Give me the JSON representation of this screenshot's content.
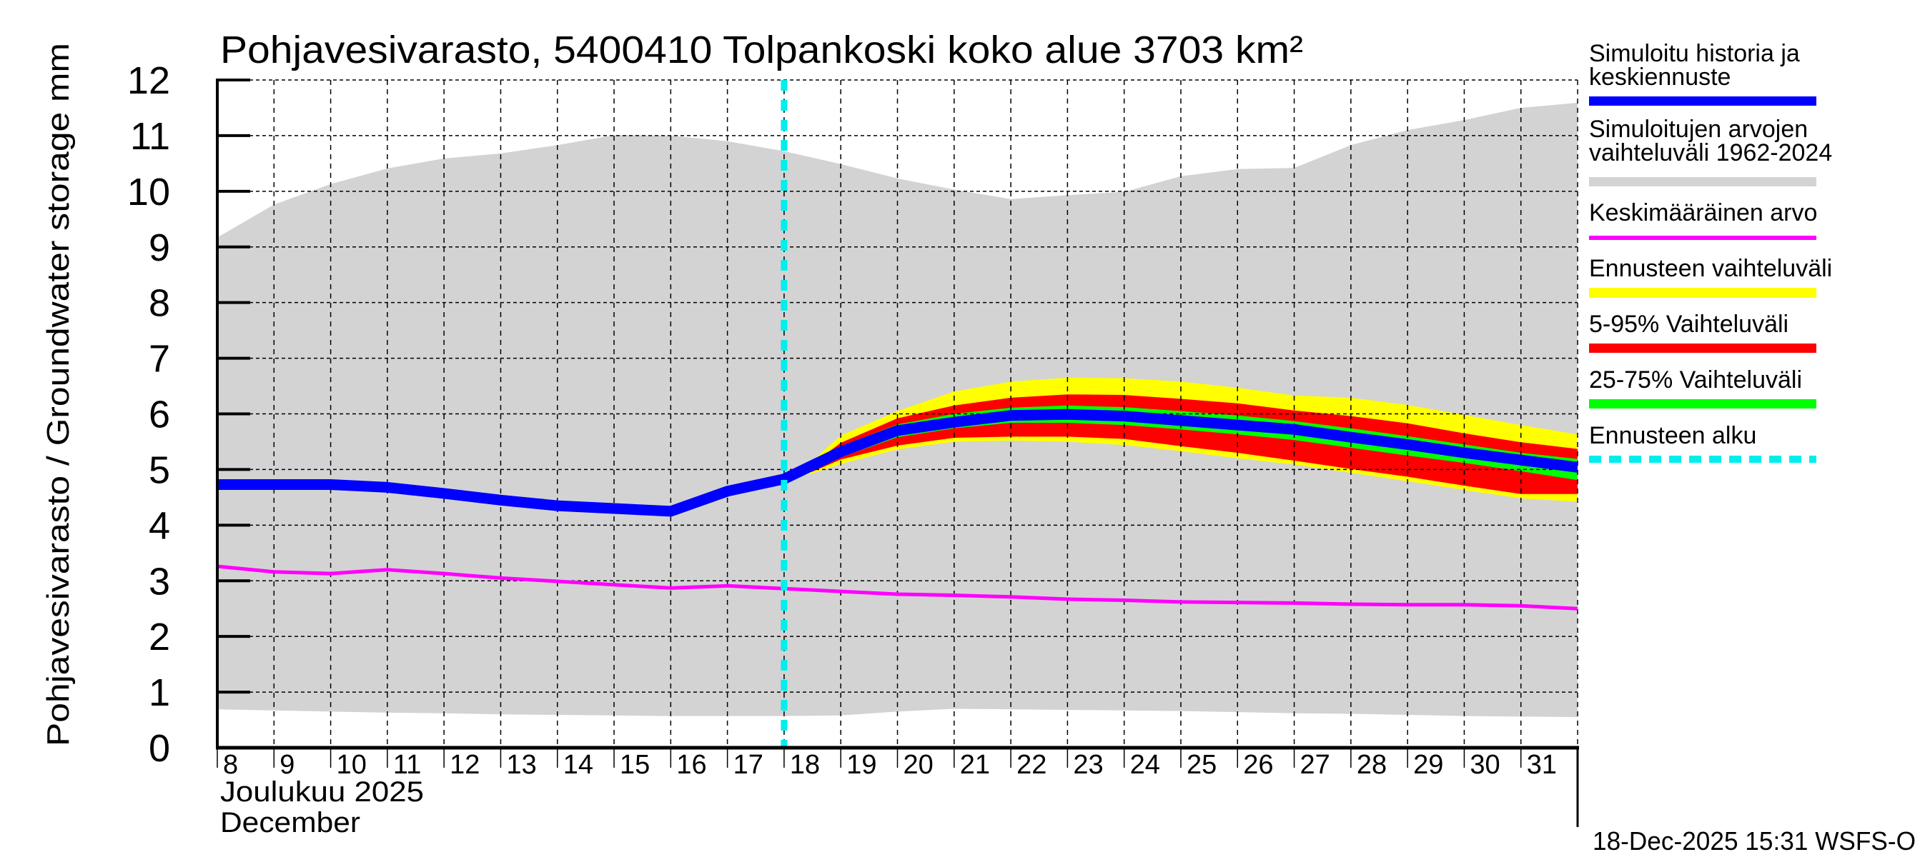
{
  "chart_data": {
    "type": "area",
    "title": "Pohjavesivarasto, 5400410 Tolpankoski koko alue 3703 km²",
    "ylabel": "Pohjavesivarasto / Groundwater storage   mm",
    "xlabel_line1": "Joulukuu  2025",
    "xlabel_line2": "December",
    "timestamp": "18-Dec-2025 15:31 WSFS-O",
    "ylim": [
      0,
      12
    ],
    "xlim": [
      8,
      32
    ],
    "yticks": [
      "0",
      "1",
      "2",
      "3",
      "4",
      "5",
      "6",
      "7",
      "8",
      "9",
      "10",
      "11",
      "12"
    ],
    "xticks": [
      "8",
      "9",
      "10",
      "11",
      "12",
      "13",
      "14",
      "15",
      "16",
      "17",
      "18",
      "19",
      "20",
      "21",
      "22",
      "23",
      "24",
      "25",
      "26",
      "27",
      "28",
      "29",
      "30",
      "31"
    ],
    "forecast_start_day": 18,
    "grid": true,
    "legend_position": "right",
    "colors": {
      "blue": "#0000ff",
      "gray": "#d3d3d3",
      "magenta": "#ff00ff",
      "yellow": "#ffff00",
      "red": "#ff0000",
      "green": "#00ff00",
      "cyan": "#00eeee"
    },
    "series": [
      {
        "name": "Simuloitujen arvojen vaihteluväli 1962-2024",
        "kind": "band",
        "color": "#d3d3d3",
        "x": [
          8,
          9,
          10,
          11,
          12,
          13,
          14,
          15,
          16,
          17,
          18,
          19,
          20,
          21,
          22,
          23,
          24,
          25,
          26,
          27,
          28,
          29,
          30,
          31,
          32
        ],
        "upper": [
          9.17,
          9.76,
          10.13,
          10.41,
          10.59,
          10.68,
          10.83,
          11.01,
          11.0,
          10.9,
          10.72,
          10.49,
          10.23,
          10.03,
          9.86,
          9.93,
          9.99,
          10.27,
          10.4,
          10.42,
          10.83,
          11.1,
          11.28,
          11.5,
          11.59
        ],
        "lower": [
          0.69,
          0.67,
          0.65,
          0.63,
          0.62,
          0.6,
          0.59,
          0.58,
          0.57,
          0.57,
          0.57,
          0.58,
          0.65,
          0.7,
          0.69,
          0.68,
          0.67,
          0.66,
          0.64,
          0.62,
          0.61,
          0.59,
          0.57,
          0.56,
          0.55
        ]
      },
      {
        "name": "Ennusteen vaihteluväli",
        "kind": "band",
        "color": "#ffff00",
        "x": [
          18,
          18.5,
          19,
          20,
          21,
          22,
          23,
          24,
          25,
          26,
          27,
          28,
          29,
          30,
          31,
          32
        ],
        "upper": [
          4.84,
          5.16,
          5.61,
          6.05,
          6.4,
          6.58,
          6.65,
          6.64,
          6.58,
          6.47,
          6.33,
          6.29,
          6.16,
          5.98,
          5.8,
          5.63
        ],
        "lower": [
          4.84,
          4.93,
          5.1,
          5.36,
          5.5,
          5.52,
          5.5,
          5.44,
          5.33,
          5.2,
          5.09,
          4.94,
          4.79,
          4.63,
          4.48,
          4.42
        ]
      },
      {
        "name": "5-95% Vaihteluväli",
        "kind": "band",
        "color": "#ff0000",
        "x": [
          18,
          18.5,
          19,
          20,
          21,
          22,
          23,
          24,
          25,
          26,
          27,
          28,
          29,
          30,
          31,
          32
        ],
        "upper": [
          4.84,
          5.1,
          5.48,
          5.92,
          6.15,
          6.29,
          6.35,
          6.34,
          6.27,
          6.19,
          6.06,
          5.96,
          5.83,
          5.65,
          5.49,
          5.37
        ],
        "lower": [
          4.84,
          4.96,
          5.18,
          5.43,
          5.57,
          5.59,
          5.59,
          5.55,
          5.42,
          5.3,
          5.16,
          5.01,
          4.87,
          4.71,
          4.56,
          4.56
        ]
      },
      {
        "name": "25-75% Vaihteluväli",
        "kind": "band",
        "color": "#00ff00",
        "x": [
          18,
          18.5,
          19,
          20,
          21,
          22,
          23,
          24,
          25,
          26,
          27,
          28,
          29,
          30,
          31,
          32
        ],
        "upper": [
          4.84,
          5.05,
          5.42,
          5.81,
          6.0,
          6.11,
          6.15,
          6.12,
          6.05,
          5.97,
          5.87,
          5.74,
          5.6,
          5.45,
          5.3,
          5.19
        ],
        "lower": [
          4.84,
          5.0,
          5.22,
          5.58,
          5.74,
          5.84,
          5.84,
          5.8,
          5.72,
          5.63,
          5.53,
          5.39,
          5.25,
          5.12,
          4.97,
          4.81
        ]
      },
      {
        "name": "Simuloitu historia ja keskiennuste",
        "kind": "line",
        "color": "#0000ff",
        "x": [
          8,
          9,
          10,
          11,
          12,
          13,
          14,
          15,
          16,
          17,
          18,
          19,
          20,
          21,
          22,
          23,
          24,
          25,
          26,
          27,
          28,
          29,
          30,
          31,
          32
        ],
        "y": [
          4.73,
          4.73,
          4.73,
          4.68,
          4.57,
          4.45,
          4.35,
          4.3,
          4.25,
          4.61,
          4.83,
          5.32,
          5.7,
          5.85,
          5.97,
          5.99,
          5.96,
          5.88,
          5.8,
          5.72,
          5.58,
          5.45,
          5.3,
          5.17,
          5.04
        ]
      },
      {
        "name": "Keskimääräinen arvo",
        "kind": "line",
        "color": "#ff00ff",
        "x": [
          8,
          9,
          10,
          11,
          12,
          13,
          14,
          15,
          16,
          17,
          18,
          19,
          20,
          21,
          22,
          23,
          24,
          25,
          26,
          27,
          28,
          29,
          30,
          31,
          32
        ],
        "y": [
          3.26,
          3.16,
          3.13,
          3.2,
          3.13,
          3.05,
          2.99,
          2.93,
          2.87,
          2.91,
          2.86,
          2.81,
          2.76,
          2.74,
          2.71,
          2.67,
          2.65,
          2.62,
          2.61,
          2.6,
          2.58,
          2.57,
          2.57,
          2.55,
          2.5
        ]
      }
    ],
    "legend": [
      {
        "lines": [
          "Simuloitu historia ja",
          "keskiennuste"
        ],
        "color": "#0000ff",
        "style": "bar"
      },
      {
        "lines": [
          "Simuloitujen arvojen",
          "vaihteluväli 1962-2024"
        ],
        "color": "#d3d3d3",
        "style": "bar"
      },
      {
        "lines": [
          "Keskimääräinen arvo"
        ],
        "color": "#ff00ff",
        "style": "thin"
      },
      {
        "lines": [
          "Ennusteen vaihteluväli"
        ],
        "color": "#ffff00",
        "style": "bar"
      },
      {
        "lines": [
          "5-95% Vaihteluväli"
        ],
        "color": "#ff0000",
        "style": "bar"
      },
      {
        "lines": [
          "25-75% Vaihteluväli"
        ],
        "color": "#00ff00",
        "style": "bar"
      },
      {
        "lines": [
          "Ennusteen alku"
        ],
        "color": "#00eeee",
        "style": "dashed"
      }
    ]
  }
}
